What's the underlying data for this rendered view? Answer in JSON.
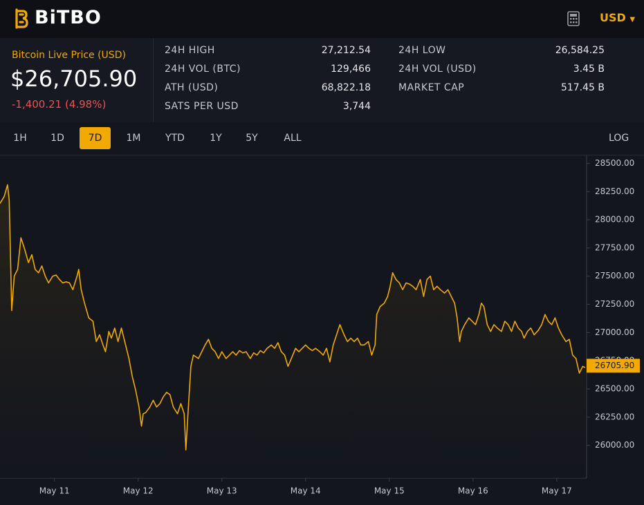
{
  "header": {
    "logo": "BiTBO",
    "currency": "USD"
  },
  "price_panel": {
    "label": "Bitcoin Live Price (USD)",
    "price": "$26,705.90",
    "change": "-1,400.21 (4.98%)"
  },
  "stats": [
    {
      "label": "24H HIGH",
      "value": "27,212.54"
    },
    {
      "label": "24H LOW",
      "value": "26,584.25"
    },
    {
      "label": "24H VOL (BTC)",
      "value": "129,466"
    },
    {
      "label": "24H VOL (USD)",
      "value": "3.45 B"
    },
    {
      "label": "ATH (USD)",
      "value": "68,822.18"
    },
    {
      "label": "MARKET CAP",
      "value": "517.45 B"
    },
    {
      "label": "SATS PER USD",
      "value": "3,744"
    }
  ],
  "timeframes": {
    "options": [
      "1H",
      "1D",
      "7D",
      "1M",
      "YTD",
      "1Y",
      "5Y",
      "ALL"
    ],
    "active_index": 2
  },
  "scale_toggle": "LOG",
  "chart_data": {
    "type": "line",
    "color": "#f2a900",
    "x": [
      10.35,
      10.4,
      10.44,
      10.46,
      10.49,
      10.52,
      10.56,
      10.6,
      10.64,
      10.69,
      10.73,
      10.77,
      10.81,
      10.85,
      10.89,
      10.93,
      10.98,
      11.02,
      11.06,
      11.1,
      11.14,
      11.18,
      11.22,
      11.27,
      11.29,
      11.32,
      11.36,
      11.41,
      11.46,
      11.5,
      11.54,
      11.58,
      11.61,
      11.65,
      11.68,
      11.72,
      11.76,
      11.8,
      11.85,
      11.89,
      11.93,
      11.97,
      12.01,
      12.04,
      12.06,
      12.09,
      12.14,
      12.18,
      12.22,
      12.26,
      12.3,
      12.34,
      12.38,
      12.42,
      12.47,
      12.51,
      12.55,
      12.57,
      12.6,
      12.63,
      12.66,
      12.72,
      12.76,
      12.8,
      12.84,
      12.88,
      12.92,
      12.96,
      13.0,
      13.05,
      13.09,
      13.13,
      13.17,
      13.21,
      13.25,
      13.29,
      13.34,
      13.38,
      13.42,
      13.46,
      13.5,
      13.54,
      13.59,
      13.63,
      13.67,
      13.71,
      13.75,
      13.79,
      13.83,
      13.88,
      13.92,
      13.96,
      14.0,
      14.04,
      14.08,
      14.12,
      14.17,
      14.21,
      14.25,
      14.29,
      14.33,
      14.37,
      14.41,
      14.46,
      14.5,
      14.54,
      14.58,
      14.62,
      14.66,
      14.7,
      14.75,
      14.79,
      14.83,
      14.85,
      14.89,
      14.94,
      14.98,
      15.01,
      15.04,
      15.08,
      15.12,
      15.16,
      15.2,
      15.24,
      15.28,
      15.32,
      15.37,
      15.41,
      15.45,
      15.49,
      15.53,
      15.57,
      15.61,
      15.66,
      15.7,
      15.74,
      15.78,
      15.81,
      15.84,
      15.86,
      15.9,
      15.95,
      15.99,
      16.03,
      16.07,
      16.1,
      16.13,
      16.17,
      16.21,
      16.25,
      16.29,
      16.34,
      16.38,
      16.42,
      16.46,
      16.5,
      16.54,
      16.58,
      16.61,
      16.65,
      16.69,
      16.73,
      16.78,
      16.82,
      16.86,
      16.9,
      16.94,
      16.98,
      17.02,
      17.06,
      17.11,
      17.15,
      17.19,
      17.23,
      17.27,
      17.31,
      17.34
    ],
    "values": [
      28145,
      28206,
      28310,
      28175,
      27195,
      27500,
      27560,
      27840,
      27750,
      27620,
      27690,
      27560,
      27530,
      27590,
      27500,
      27440,
      27500,
      27510,
      27470,
      27440,
      27450,
      27440,
      27380,
      27500,
      27560,
      27380,
      27260,
      27130,
      27100,
      26920,
      26980,
      26890,
      26830,
      27010,
      26950,
      27040,
      26920,
      27040,
      26890,
      26770,
      26610,
      26490,
      26340,
      26170,
      26280,
      26290,
      26340,
      26400,
      26340,
      26370,
      26430,
      26470,
      26450,
      26340,
      26280,
      26370,
      26280,
      25960,
      26340,
      26700,
      26800,
      26770,
      26830,
      26890,
      26940,
      26860,
      26830,
      26770,
      26830,
      26770,
      26800,
      26830,
      26800,
      26840,
      26820,
      26830,
      26770,
      26820,
      26800,
      26840,
      26820,
      26860,
      26890,
      26860,
      26910,
      26830,
      26800,
      26700,
      26770,
      26860,
      26830,
      26860,
      26890,
      26860,
      26840,
      26860,
      26830,
      26800,
      26860,
      26740,
      26890,
      26980,
      27070,
      26980,
      26920,
      26950,
      26920,
      26950,
      26890,
      26890,
      26920,
      26800,
      26890,
      27160,
      27230,
      27260,
      27320,
      27410,
      27530,
      27470,
      27440,
      27380,
      27440,
      27430,
      27410,
      27380,
      27470,
      27320,
      27470,
      27500,
      27380,
      27410,
      27380,
      27350,
      27380,
      27320,
      27260,
      27130,
      26920,
      27010,
      27070,
      27130,
      27100,
      27070,
      27160,
      27260,
      27230,
      27070,
      27010,
      27070,
      27040,
      27010,
      27100,
      27070,
      27010,
      27100,
      27040,
      27010,
      26950,
      27010,
      27040,
      26980,
      27020,
      27070,
      27160,
      27100,
      27070,
      27130,
      27040,
      26980,
      26920,
      26940,
      26800,
      26770,
      26640,
      26700,
      26690
    ],
    "xlim": [
      10.35,
      17.34
    ],
    "xticks": [
      {
        "value": 11,
        "label": "May 11"
      },
      {
        "value": 12,
        "label": "May 12"
      },
      {
        "value": 13,
        "label": "May 13"
      },
      {
        "value": 14,
        "label": "May 14"
      },
      {
        "value": 15,
        "label": "May 15"
      },
      {
        "value": 16,
        "label": "May 16"
      },
      {
        "value": 17,
        "label": "May 17"
      }
    ],
    "ylim": [
      25710,
      28570
    ],
    "yticks": [
      {
        "value": 26000,
        "label": "26000.00"
      },
      {
        "value": 26250,
        "label": "26250.00"
      },
      {
        "value": 26500,
        "label": "26500.00"
      },
      {
        "value": 26750,
        "label": "26750.00"
      },
      {
        "value": 27000,
        "label": "27000.00"
      },
      {
        "value": 27250,
        "label": "27250.00"
      },
      {
        "value": 27500,
        "label": "27500.00"
      },
      {
        "value": 27750,
        "label": "27750.00"
      },
      {
        "value": 28000,
        "label": "28000.00"
      },
      {
        "value": 28250,
        "label": "28250.00"
      },
      {
        "value": 28500,
        "label": "28500.00"
      }
    ],
    "current": {
      "value": 26705.9,
      "label": "26705.90"
    }
  }
}
